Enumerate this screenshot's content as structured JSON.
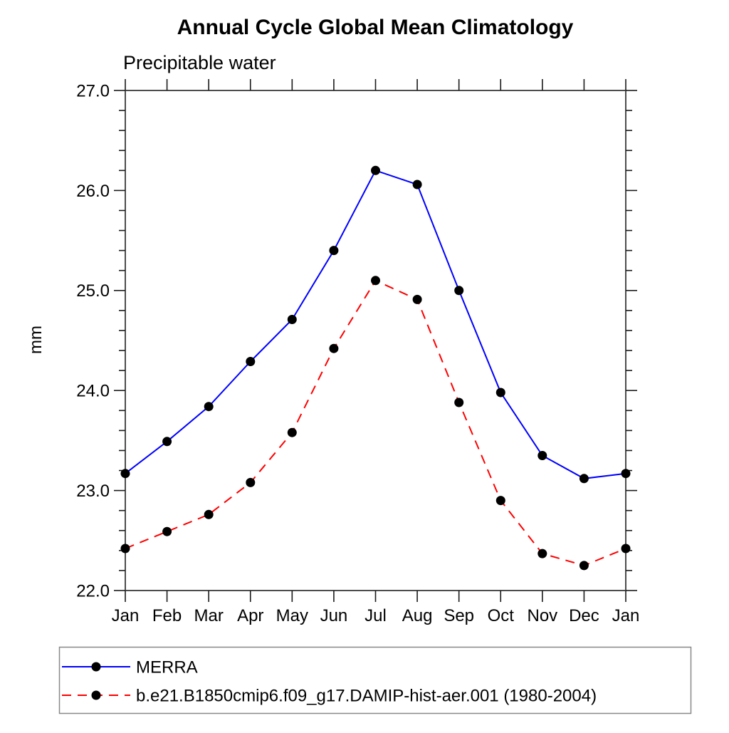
{
  "chart_data": {
    "type": "line",
    "title": "Annual Cycle Global Mean Climatology",
    "subtitle": "Precipitable water",
    "ylabel": "mm",
    "xlabel": "",
    "x_categories": [
      "Jan",
      "Feb",
      "Mar",
      "Apr",
      "May",
      "Jun",
      "Jul",
      "Aug",
      "Sep",
      "Oct",
      "Nov",
      "Dec",
      "Jan"
    ],
    "ylim": [
      22.0,
      27.0
    ],
    "y_major_ticks": [
      22.0,
      23.0,
      24.0,
      25.0,
      26.0,
      27.0
    ],
    "y_tick_labels": [
      "22.0",
      "23.0",
      "24.0",
      "25.0",
      "26.0",
      "27.0"
    ],
    "y_minor_step": 0.2,
    "grid": false,
    "legend_position": "bottom-left-box",
    "marker": "filled-circle",
    "marker_color": "#000000",
    "axis_color": "#4d4d4d",
    "tick_color": "#1a1a1a",
    "legend_border_color": "#888888",
    "series": [
      {
        "name": "MERRA",
        "color": "#0000ff",
        "style": "solid",
        "values": [
          23.17,
          23.49,
          23.84,
          24.29,
          24.71,
          25.4,
          26.2,
          26.06,
          25.0,
          23.98,
          23.35,
          23.12,
          23.17
        ]
      },
      {
        "name": "b.e21.B1850cmip6.f09_g17.DAMIP-hist-aer.001 (1980-2004)",
        "color": "#ff0000",
        "style": "dashed",
        "values": [
          22.42,
          22.59,
          22.76,
          23.08,
          23.58,
          24.42,
          25.1,
          24.91,
          23.88,
          22.9,
          22.37,
          22.25,
          22.42
        ]
      }
    ]
  }
}
